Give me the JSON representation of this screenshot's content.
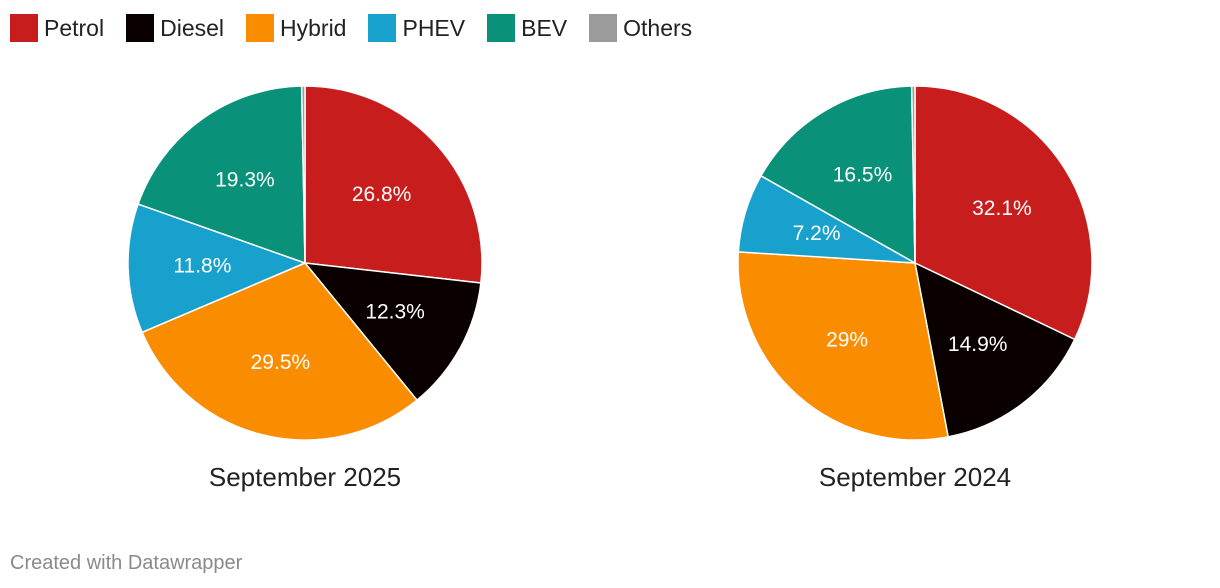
{
  "legend": [
    {
      "label": "Petrol",
      "color": "#c71e1d"
    },
    {
      "label": "Diesel",
      "color": "#0a0000"
    },
    {
      "label": "Hybrid",
      "color": "#fa8c00"
    },
    {
      "label": "PHEV",
      "color": "#18a1cd"
    },
    {
      "label": "BEV",
      "color": "#09917a"
    },
    {
      "label": "Others",
      "color": "#9b9b9b"
    }
  ],
  "chart_data": [
    {
      "type": "pie",
      "title": "September 2025",
      "categories": [
        "Petrol",
        "Diesel",
        "Hybrid",
        "PHEV",
        "BEV",
        "Others"
      ],
      "values": [
        26.8,
        12.3,
        29.5,
        11.8,
        19.3,
        0.3
      ],
      "labels": [
        "26.8%",
        "12.3%",
        "29.5%",
        "11.8%",
        "19.3%",
        ""
      ],
      "colors": [
        "#c71e1d",
        "#0a0000",
        "#fa8c00",
        "#18a1cd",
        "#09917a",
        "#9b9b9b"
      ],
      "legend_position": "top-left"
    },
    {
      "type": "pie",
      "title": "September 2024",
      "categories": [
        "Petrol",
        "Diesel",
        "Hybrid",
        "PHEV",
        "BEV",
        "Others"
      ],
      "values": [
        32.1,
        14.9,
        29,
        7.2,
        16.5,
        0.3
      ],
      "labels": [
        "32.1%",
        "14.9%",
        "29%",
        "7.2%",
        "16.5%",
        ""
      ],
      "colors": [
        "#c71e1d",
        "#0a0000",
        "#fa8c00",
        "#18a1cd",
        "#09917a",
        "#9b9b9b"
      ],
      "legend_position": "top-left"
    }
  ],
  "footer": {
    "credit": "Created with Datawrapper"
  }
}
